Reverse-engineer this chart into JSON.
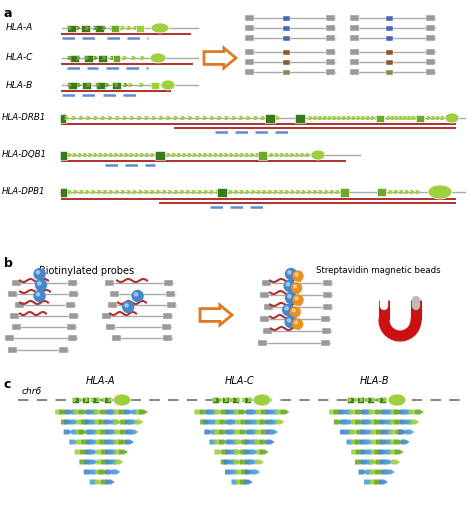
{
  "bg_color": "#ffffff",
  "dark_green": "#3a7a1e",
  "light_green": "#9ecf3e",
  "mid_green": "#6aaa28",
  "gray_line": "#aaaaaa",
  "red_line": "#b03030",
  "blue_dash": "#5b8fd5",
  "orange_arrow": "#e07820",
  "gray_box": "#9a9a9a",
  "dark_blue_box": "#4466bb",
  "brown_box": "#8b5a2b",
  "olive_box": "#8a8a50",
  "probe_color": "#aa2222",
  "bead_blue": "#4488cc",
  "bead_orange": "#e89020",
  "magnet_red": "#cc1111",
  "section_labels": [
    "a",
    "b",
    "c"
  ],
  "gene_names_a": [
    "HLA-A",
    "HLA-C",
    "HLA-B",
    "HLA-DRB1",
    "HLA-DQB1",
    "HLA-DPB1"
  ],
  "gene_names_c": [
    "chr6",
    "HLA-A",
    "HLA-C",
    "HLA-B"
  ]
}
